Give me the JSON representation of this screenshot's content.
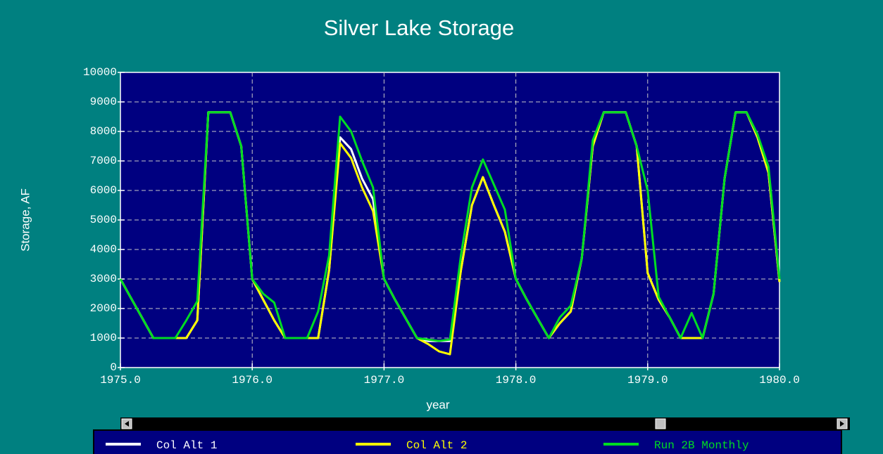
{
  "chart_data": {
    "type": "line",
    "title": "Silver Lake Storage",
    "xlabel": "year",
    "ylabel": "Storage, AF",
    "x": [
      1975.0,
      1975.0833,
      1975.1667,
      1975.25,
      1975.3333,
      1975.4167,
      1975.5,
      1975.5833,
      1975.6667,
      1975.75,
      1975.8333,
      1975.9167,
      1976.0,
      1976.0833,
      1976.1667,
      1976.25,
      1976.3333,
      1976.4167,
      1976.5,
      1976.5833,
      1976.6667,
      1976.75,
      1976.8333,
      1976.9167,
      1977.0,
      1977.0833,
      1977.1667,
      1977.25,
      1977.3333,
      1977.4167,
      1977.5,
      1977.5833,
      1977.6667,
      1977.75,
      1977.8333,
      1977.9167,
      1978.0,
      1978.0833,
      1978.1667,
      1978.25,
      1978.3333,
      1978.4167,
      1978.5,
      1978.5833,
      1978.6667,
      1978.75,
      1978.8333,
      1978.9167,
      1979.0,
      1979.0833,
      1979.1667,
      1979.25,
      1979.3333,
      1979.4167,
      1979.5,
      1979.5833,
      1979.6667,
      1979.75,
      1979.8333,
      1979.9167,
      1980.0
    ],
    "series": [
      {
        "name": "Col Alt 1",
        "color": "#ffffff",
        "values": [
          3000,
          2330,
          1670,
          1000,
          1000,
          1000,
          1000,
          1600,
          8650,
          8650,
          8650,
          7500,
          3000,
          2300,
          1600,
          1000,
          1000,
          1000,
          1000,
          3300,
          7800,
          7400,
          6400,
          5700,
          3000,
          2300,
          1650,
          1000,
          900,
          900,
          900,
          3300,
          5500,
          6450,
          5500,
          4600,
          3000,
          2300,
          1650,
          1000,
          1500,
          1900,
          3700,
          7500,
          8650,
          8650,
          8650,
          7500,
          3200,
          2300,
          1700,
          1000,
          1000,
          1000,
          2500,
          6400,
          8650,
          8650,
          7800,
          6600,
          2900
        ]
      },
      {
        "name": "Col Alt 2",
        "color": "#ffff00",
        "values": [
          3000,
          2330,
          1670,
          1000,
          1000,
          1000,
          1000,
          1600,
          8650,
          8650,
          8650,
          7500,
          3000,
          2300,
          1600,
          1000,
          1000,
          1000,
          1000,
          3300,
          7600,
          7100,
          6100,
          5300,
          3000,
          2300,
          1650,
          1000,
          800,
          550,
          450,
          3300,
          5500,
          6450,
          5500,
          4600,
          3000,
          2300,
          1650,
          1000,
          1500,
          1900,
          3700,
          7500,
          8650,
          8650,
          8650,
          7500,
          3200,
          2300,
          1700,
          1000,
          1000,
          1000,
          2500,
          6400,
          8650,
          8650,
          7800,
          6600,
          2900
        ]
      },
      {
        "name": "Run 2B Monthly",
        "color": "#00dd22",
        "values": [
          3000,
          2330,
          1670,
          1000,
          1000,
          1000,
          1600,
          2250,
          8650,
          8650,
          8650,
          7500,
          3000,
          2500,
          2200,
          1000,
          1000,
          1000,
          1900,
          3800,
          8500,
          8000,
          7000,
          6100,
          3000,
          2300,
          1650,
          1000,
          950,
          900,
          950,
          3800,
          6100,
          7050,
          6200,
          5350,
          3000,
          2300,
          1650,
          1000,
          1700,
          2100,
          3700,
          7700,
          8650,
          8650,
          8650,
          7500,
          6000,
          2400,
          1700,
          1000,
          1850,
          1000,
          2500,
          6400,
          8650,
          8650,
          7900,
          6800,
          3000
        ]
      }
    ],
    "xlim": [
      1975,
      1980
    ],
    "xticks": [
      {
        "value": 1975,
        "label": "1975.0"
      },
      {
        "value": 1976,
        "label": "1976.0"
      },
      {
        "value": 1977,
        "label": "1977.0"
      },
      {
        "value": 1978,
        "label": "1978.0"
      },
      {
        "value": 1979,
        "label": "1979.0"
      },
      {
        "value": 1980,
        "label": "1980.0"
      }
    ],
    "ylim": [
      0,
      10000
    ],
    "yticks": [
      0,
      1000,
      2000,
      3000,
      4000,
      5000,
      6000,
      7000,
      8000,
      9000,
      10000
    ],
    "grid": true
  }
}
